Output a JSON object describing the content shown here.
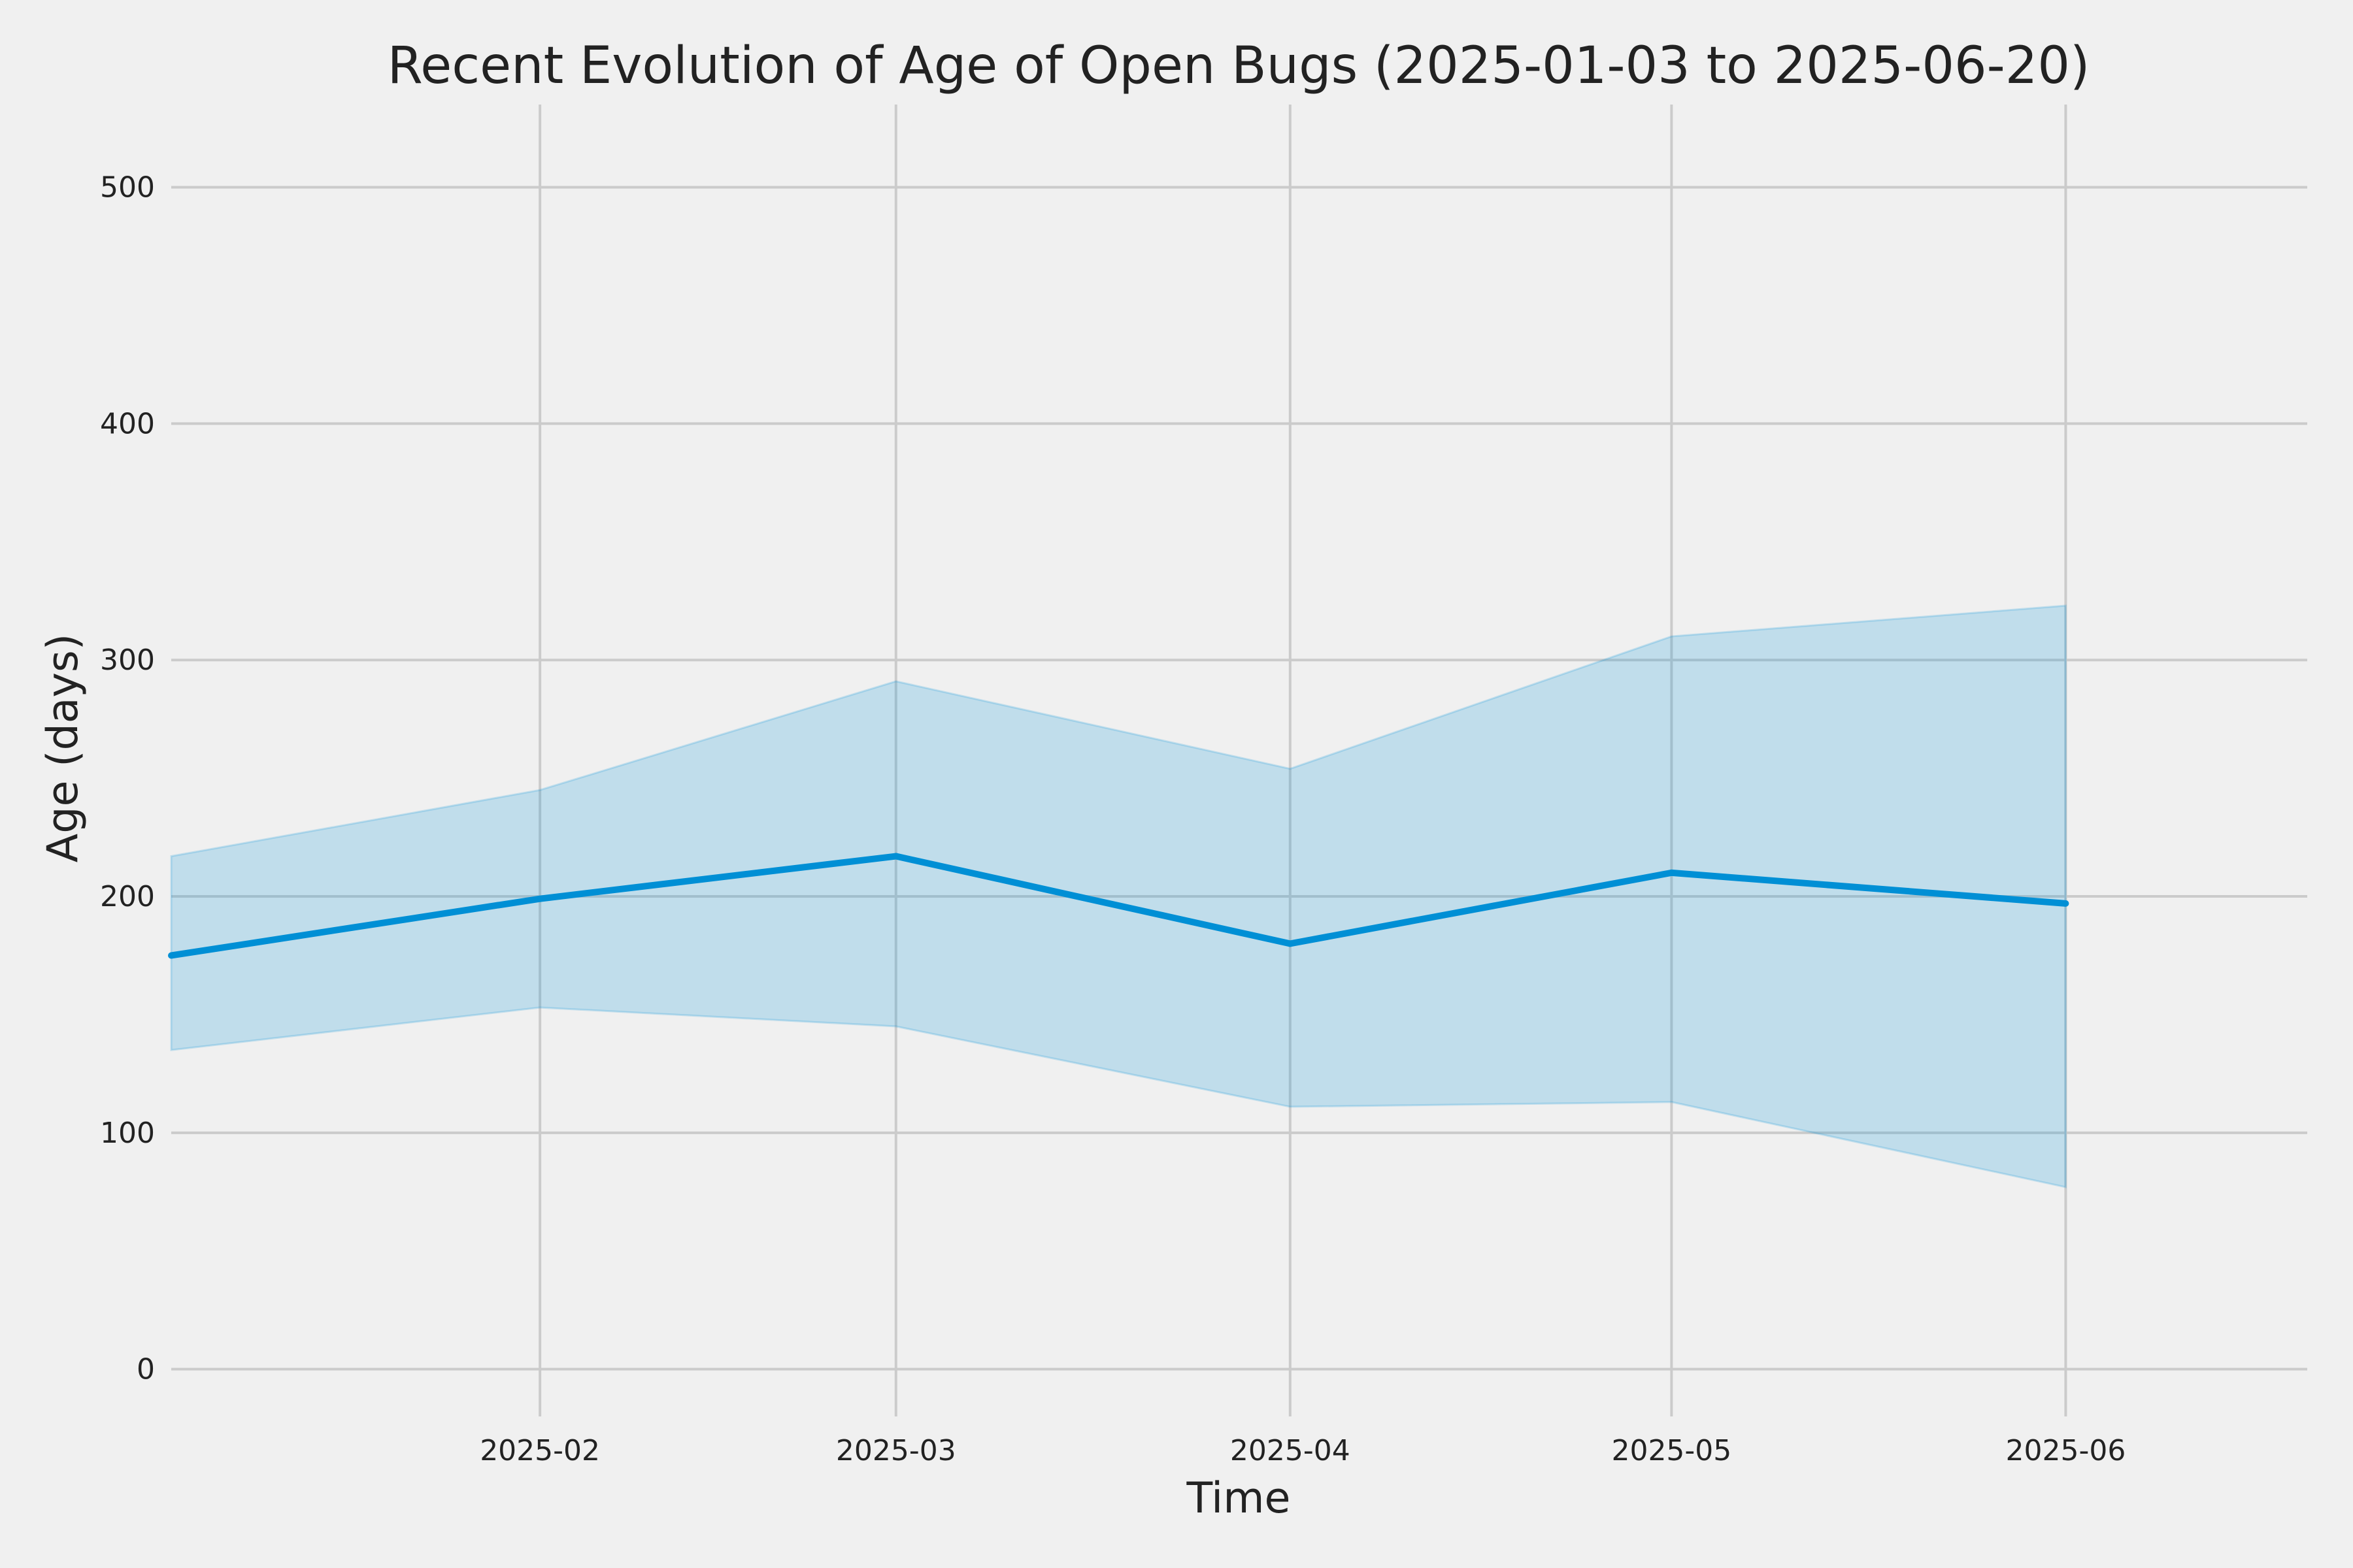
{
  "chart_data": {
    "type": "area",
    "title": "Recent Evolution of Age of Open Bugs (2025-01-03 to 2025-06-20)",
    "xlabel": "Time",
    "ylabel": "Age (days)",
    "x": [
      "2025-01-03",
      "2025-02-01",
      "2025-03-01",
      "2025-04-01",
      "2025-05-01",
      "2025-06-01"
    ],
    "series": [
      {
        "role": "mean",
        "values": [
          175,
          199,
          217,
          180,
          210,
          197
        ]
      },
      {
        "role": "band_upper",
        "values": [
          217,
          245,
          291,
          254,
          310,
          323
        ]
      },
      {
        "role": "band_lower",
        "values": [
          135,
          153,
          145,
          111,
          113,
          77
        ]
      }
    ],
    "xlim": [
      "2025-01-03",
      "2025-06-20"
    ],
    "ylim": [
      -20,
      535
    ],
    "x_ticks": [
      "2025-02",
      "2025-03",
      "2025-04",
      "2025-05",
      "2025-06"
    ],
    "y_ticks": [
      0,
      100,
      200,
      300,
      400,
      500
    ],
    "grid": true,
    "colors": {
      "line": "#008fd5",
      "band": "#008fd5",
      "background": "#f0f0f0"
    }
  }
}
